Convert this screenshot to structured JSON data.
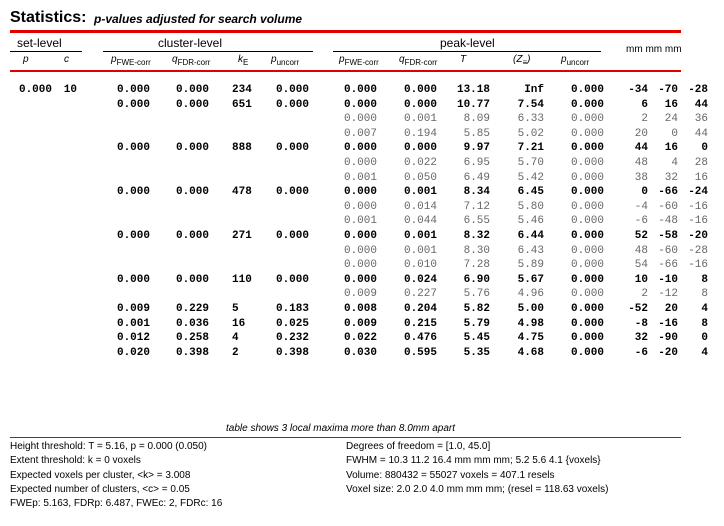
{
  "title": "Statistics:",
  "subtitle": "p-values adjusted for search volume",
  "headers": {
    "set_level": "set-level",
    "cluster_level": "cluster-level",
    "peak_level": "peak-level",
    "mm": "mm mm mm"
  },
  "col_headers": [
    "p",
    "c",
    "FWE-corr",
    "FDR-corr",
    "E",
    "uncorr",
    "FWE-corr",
    "FDR-corr",
    "T",
    "uncorr"
  ],
  "rows": [
    {
      "set_p": "0.000",
      "set_c": "10",
      "cl_fwe": "0.000",
      "cl_fdr": "0.000",
      "ke": "234",
      "cl_unc": "0.000",
      "pk_fwe": "0.000",
      "pk_fdr": "0.000",
      "t": "13.18",
      "z": "Inf",
      "pk_unc": "0.000",
      "x": "-34",
      "y": "-70",
      "zz": "-28",
      "bold": true
    },
    {
      "set_p": "",
      "set_c": "",
      "cl_fwe": "0.000",
      "cl_fdr": "0.000",
      "ke": "651",
      "cl_unc": "0.000",
      "pk_fwe": "0.000",
      "pk_fdr": "0.000",
      "t": "10.77",
      "z": "7.54",
      "pk_unc": "0.000",
      "x": "6",
      "y": "16",
      "zz": "44",
      "bold": true
    },
    {
      "set_p": "",
      "set_c": "",
      "cl_fwe": "",
      "cl_fdr": "",
      "ke": "",
      "cl_unc": "",
      "pk_fwe": "0.000",
      "pk_fdr": "0.001",
      "t": "8.09",
      "z": "6.33",
      "pk_unc": "0.000",
      "x": "2",
      "y": "24",
      "zz": "36",
      "bold": false
    },
    {
      "set_p": "",
      "set_c": "",
      "cl_fwe": "",
      "cl_fdr": "",
      "ke": "",
      "cl_unc": "",
      "pk_fwe": "0.007",
      "pk_fdr": "0.194",
      "t": "5.85",
      "z": "5.02",
      "pk_unc": "0.000",
      "x": "20",
      "y": "0",
      "zz": "44",
      "bold": false
    },
    {
      "set_p": "",
      "set_c": "",
      "cl_fwe": "0.000",
      "cl_fdr": "0.000",
      "ke": "888",
      "cl_unc": "0.000",
      "pk_fwe": "0.000",
      "pk_fdr": "0.000",
      "t": "9.97",
      "z": "7.21",
      "pk_unc": "0.000",
      "x": "44",
      "y": "16",
      "zz": "0",
      "bold": true
    },
    {
      "set_p": "",
      "set_c": "",
      "cl_fwe": "",
      "cl_fdr": "",
      "ke": "",
      "cl_unc": "",
      "pk_fwe": "0.000",
      "pk_fdr": "0.022",
      "t": "6.95",
      "z": "5.70",
      "pk_unc": "0.000",
      "x": "48",
      "y": "4",
      "zz": "28",
      "bold": false
    },
    {
      "set_p": "",
      "set_c": "",
      "cl_fwe": "",
      "cl_fdr": "",
      "ke": "",
      "cl_unc": "",
      "pk_fwe": "0.001",
      "pk_fdr": "0.050",
      "t": "6.49",
      "z": "5.42",
      "pk_unc": "0.000",
      "x": "38",
      "y": "32",
      "zz": "16",
      "bold": false
    },
    {
      "set_p": "",
      "set_c": "",
      "cl_fwe": "0.000",
      "cl_fdr": "0.000",
      "ke": "478",
      "cl_unc": "0.000",
      "pk_fwe": "0.000",
      "pk_fdr": "0.001",
      "t": "8.34",
      "z": "6.45",
      "pk_unc": "0.000",
      "x": "0",
      "y": "-66",
      "zz": "-24",
      "bold": true
    },
    {
      "set_p": "",
      "set_c": "",
      "cl_fwe": "",
      "cl_fdr": "",
      "ke": "",
      "cl_unc": "",
      "pk_fwe": "0.000",
      "pk_fdr": "0.014",
      "t": "7.12",
      "z": "5.80",
      "pk_unc": "0.000",
      "x": "-4",
      "y": "-60",
      "zz": "-16",
      "bold": false
    },
    {
      "set_p": "",
      "set_c": "",
      "cl_fwe": "",
      "cl_fdr": "",
      "ke": "",
      "cl_unc": "",
      "pk_fwe": "0.001",
      "pk_fdr": "0.044",
      "t": "6.55",
      "z": "5.46",
      "pk_unc": "0.000",
      "x": "-6",
      "y": "-48",
      "zz": "-16",
      "bold": false
    },
    {
      "set_p": "",
      "set_c": "",
      "cl_fwe": "0.000",
      "cl_fdr": "0.000",
      "ke": "271",
      "cl_unc": "0.000",
      "pk_fwe": "0.000",
      "pk_fdr": "0.001",
      "t": "8.32",
      "z": "6.44",
      "pk_unc": "0.000",
      "x": "52",
      "y": "-58",
      "zz": "-20",
      "bold": true
    },
    {
      "set_p": "",
      "set_c": "",
      "cl_fwe": "",
      "cl_fdr": "",
      "ke": "",
      "cl_unc": "",
      "pk_fwe": "0.000",
      "pk_fdr": "0.001",
      "t": "8.30",
      "z": "6.43",
      "pk_unc": "0.000",
      "x": "48",
      "y": "-60",
      "zz": "-28",
      "bold": false
    },
    {
      "set_p": "",
      "set_c": "",
      "cl_fwe": "",
      "cl_fdr": "",
      "ke": "",
      "cl_unc": "",
      "pk_fwe": "0.000",
      "pk_fdr": "0.010",
      "t": "7.28",
      "z": "5.89",
      "pk_unc": "0.000",
      "x": "54",
      "y": "-66",
      "zz": "-16",
      "bold": false
    },
    {
      "set_p": "",
      "set_c": "",
      "cl_fwe": "0.000",
      "cl_fdr": "0.000",
      "ke": "110",
      "cl_unc": "0.000",
      "pk_fwe": "0.000",
      "pk_fdr": "0.024",
      "t": "6.90",
      "z": "5.67",
      "pk_unc": "0.000",
      "x": "10",
      "y": "-10",
      "zz": "8",
      "bold": true
    },
    {
      "set_p": "",
      "set_c": "",
      "cl_fwe": "",
      "cl_fdr": "",
      "ke": "",
      "cl_unc": "",
      "pk_fwe": "0.009",
      "pk_fdr": "0.227",
      "t": "5.76",
      "z": "4.96",
      "pk_unc": "0.000",
      "x": "2",
      "y": "-12",
      "zz": "8",
      "bold": false
    },
    {
      "set_p": "",
      "set_c": "",
      "cl_fwe": "0.009",
      "cl_fdr": "0.229",
      "ke": "5",
      "cl_unc": "0.183",
      "pk_fwe": "0.008",
      "pk_fdr": "0.204",
      "t": "5.82",
      "z": "5.00",
      "pk_unc": "0.000",
      "x": "-52",
      "y": "20",
      "zz": "4",
      "bold": true
    },
    {
      "set_p": "",
      "set_c": "",
      "cl_fwe": "0.001",
      "cl_fdr": "0.036",
      "ke": "16",
      "cl_unc": "0.025",
      "pk_fwe": "0.009",
      "pk_fdr": "0.215",
      "t": "5.79",
      "z": "4.98",
      "pk_unc": "0.000",
      "x": "-8",
      "y": "-16",
      "zz": "8",
      "bold": true
    },
    {
      "set_p": "",
      "set_c": "",
      "cl_fwe": "0.012",
      "cl_fdr": "0.258",
      "ke": "4",
      "cl_unc": "0.232",
      "pk_fwe": "0.022",
      "pk_fdr": "0.476",
      "t": "5.45",
      "z": "4.75",
      "pk_unc": "0.000",
      "x": "32",
      "y": "-90",
      "zz": "0",
      "bold": true
    },
    {
      "set_p": "",
      "set_c": "",
      "cl_fwe": "0.020",
      "cl_fdr": "0.398",
      "ke": "2",
      "cl_unc": "0.398",
      "pk_fwe": "0.030",
      "pk_fdr": "0.595",
      "t": "5.35",
      "z": "4.68",
      "pk_unc": "0.000",
      "x": "-6",
      "y": "-20",
      "zz": "4",
      "bold": true
    }
  ],
  "table_note": "table shows 3 local maxima more than 8.0mm apart",
  "footer_left": [
    "Height threshold: T = 5.16, p = 0.000 (0.050)",
    "Extent threshold: k = 0 voxels",
    "Expected voxels per cluster, <k> = 3.008",
    "Expected number of clusters, <c> = 0.05",
    "FWEp: 5.163, FDRp: 6.487, FWEc: 2, FDRc: 16"
  ],
  "footer_right": [
    "Degrees of freedom = [1.0, 45.0]",
    "FWHM = 10.3 11.2 16.4 mm mm mm; 5.2 5.6 4.1 {voxels}",
    "Volume: 880432 = 55027 voxels = 407.1 resels",
    "Voxel size: 2.0 2.0 4.0 mm mm mm; (resel = 118.63 voxels)"
  ]
}
